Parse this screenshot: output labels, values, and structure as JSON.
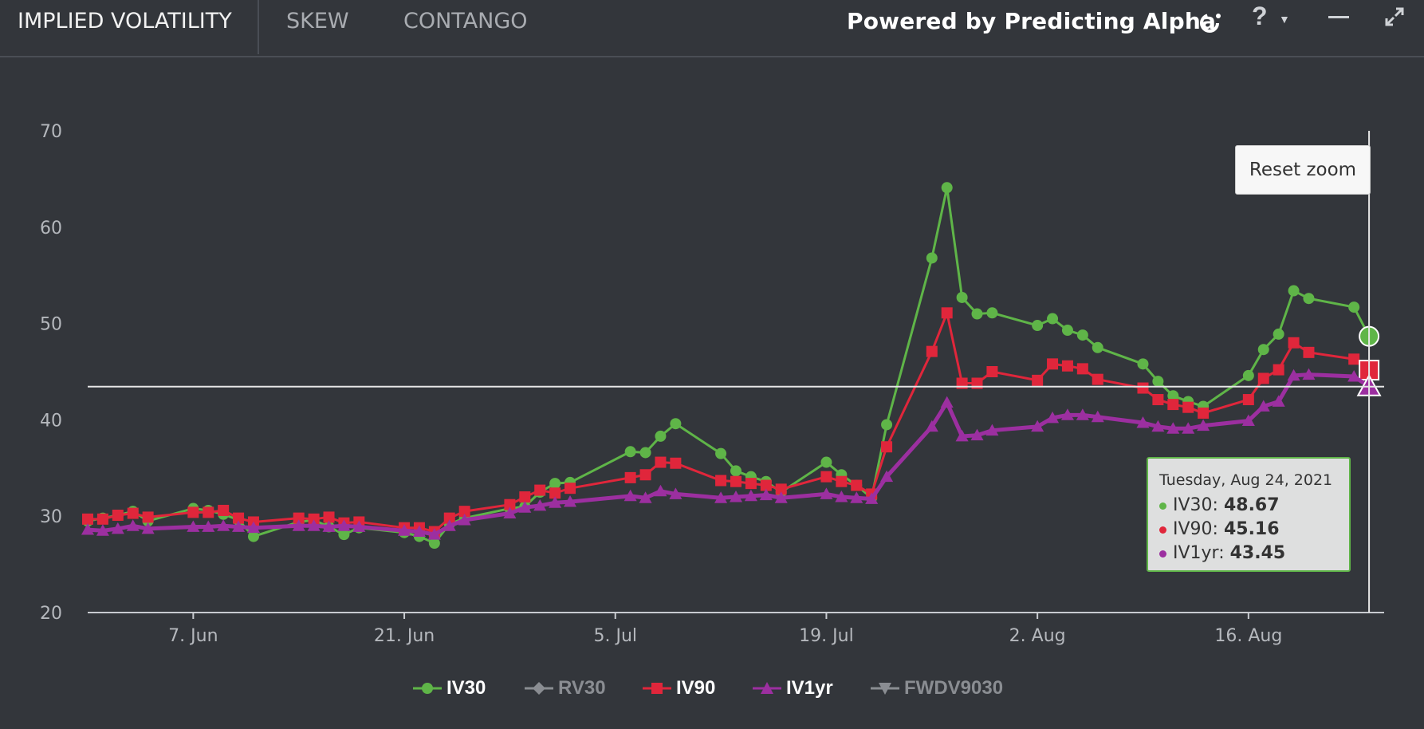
{
  "tabs": [
    {
      "label": "IMPLIED VOLATILITY",
      "active": true
    },
    {
      "label": "SKEW",
      "active": false
    },
    {
      "label": "CONTANGO",
      "active": false
    }
  ],
  "header": {
    "powered_by": "Powered by Predicting Alpha",
    "help_label": "?",
    "icons": [
      "predicting-alpha-logo-icon",
      "help-icon",
      "chevron-down-icon",
      "minimize-icon",
      "expand-icon"
    ]
  },
  "reset_zoom_label": "Reset zoom",
  "tooltip": {
    "date": "Tuesday, Aug 24, 2021",
    "rows": [
      {
        "name": "IV30:",
        "value": "48.67",
        "color": "#5fb548"
      },
      {
        "name": "IV90:",
        "value": "45.16",
        "color": "#e0263b"
      },
      {
        "name": "IV1yr:",
        "value": "43.45",
        "color": "#9c2fa0"
      }
    ]
  },
  "colors": {
    "IV30": "#5fb548",
    "RV30": "#8a8d92",
    "IV90": "#e0263b",
    "IV1yr": "#9c2fa0",
    "FWDV9030": "#8a8d92",
    "background": "#33363b",
    "axis_text": "#b5b8bd"
  },
  "chart_data": {
    "type": "line",
    "title": "",
    "xlabel": "",
    "ylabel": "",
    "ylim": [
      20,
      70
    ],
    "yticks": [
      20,
      30,
      40,
      50,
      60,
      70
    ],
    "xlim": [
      "2021-05-31",
      "2021-08-25"
    ],
    "xticks": [
      {
        "date": "2021-06-07",
        "label": "7. Jun"
      },
      {
        "date": "2021-06-21",
        "label": "21. Jun"
      },
      {
        "date": "2021-07-05",
        "label": "5. Jul"
      },
      {
        "date": "2021-07-19",
        "label": "19. Jul"
      },
      {
        "date": "2021-08-02",
        "label": "2. Aug"
      },
      {
        "date": "2021-08-16",
        "label": "16. Aug"
      }
    ],
    "crosshair": {
      "date": "2021-08-24",
      "y": 43.45
    },
    "legend_position": "bottom-center",
    "legend": [
      {
        "name": "IV30",
        "visible": true,
        "marker": "circle"
      },
      {
        "name": "RV30",
        "visible": false,
        "marker": "diamond"
      },
      {
        "name": "IV90",
        "visible": true,
        "marker": "square"
      },
      {
        "name": "IV1yr",
        "visible": true,
        "marker": "triangle"
      },
      {
        "name": "FWDV9030",
        "visible": false,
        "marker": "triangle-down"
      }
    ],
    "series": [
      {
        "name": "IV30",
        "marker": "circle",
        "x": [
          "2021-05-31",
          "2021-06-01",
          "2021-06-02",
          "2021-06-03",
          "2021-06-04",
          "2021-06-07",
          "2021-06-08",
          "2021-06-09",
          "2021-06-10",
          "2021-06-11",
          "2021-06-14",
          "2021-06-15",
          "2021-06-16",
          "2021-06-17",
          "2021-06-18",
          "2021-06-21",
          "2021-06-22",
          "2021-06-23",
          "2021-06-24",
          "2021-06-25",
          "2021-06-28",
          "2021-06-29",
          "2021-06-30",
          "2021-07-01",
          "2021-07-02",
          "2021-07-06",
          "2021-07-07",
          "2021-07-08",
          "2021-07-09",
          "2021-07-12",
          "2021-07-13",
          "2021-07-14",
          "2021-07-15",
          "2021-07-16",
          "2021-07-19",
          "2021-07-20",
          "2021-07-21",
          "2021-07-22",
          "2021-07-23",
          "2021-07-26",
          "2021-07-27",
          "2021-07-28",
          "2021-07-29",
          "2021-07-30",
          "2021-08-02",
          "2021-08-03",
          "2021-08-04",
          "2021-08-05",
          "2021-08-06",
          "2021-08-09",
          "2021-08-10",
          "2021-08-11",
          "2021-08-12",
          "2021-08-13",
          "2021-08-16",
          "2021-08-17",
          "2021-08-18",
          "2021-08-19",
          "2021-08-20",
          "2021-08-23",
          "2021-08-24"
        ],
        "y": [
          29.5,
          29.8,
          30.1,
          30.5,
          29.5,
          30.8,
          30.6,
          30.2,
          29.6,
          27.9,
          29.4,
          29.6,
          28.9,
          28.1,
          28.8,
          28.3,
          27.9,
          27.2,
          29.2,
          29.8,
          30.8,
          31.0,
          32.5,
          33.4,
          33.5,
          36.7,
          36.6,
          38.3,
          39.6,
          36.5,
          34.7,
          34.1,
          33.6,
          32.5,
          35.6,
          34.3,
          33.2,
          31.9,
          39.5,
          56.8,
          64.1,
          52.7,
          51.0,
          51.1,
          49.8,
          50.5,
          49.3,
          48.8,
          47.5,
          45.8,
          44.0,
          42.5,
          41.9,
          41.4,
          44.6,
          47.3,
          48.9,
          53.4,
          52.6,
          51.7,
          48.67
        ]
      },
      {
        "name": "IV90",
        "marker": "square",
        "x": [
          "2021-05-31",
          "2021-06-01",
          "2021-06-02",
          "2021-06-03",
          "2021-06-04",
          "2021-06-07",
          "2021-06-08",
          "2021-06-09",
          "2021-06-10",
          "2021-06-11",
          "2021-06-14",
          "2021-06-15",
          "2021-06-16",
          "2021-06-17",
          "2021-06-18",
          "2021-06-21",
          "2021-06-22",
          "2021-06-23",
          "2021-06-24",
          "2021-06-25",
          "2021-06-28",
          "2021-06-29",
          "2021-06-30",
          "2021-07-01",
          "2021-07-02",
          "2021-07-06",
          "2021-07-07",
          "2021-07-08",
          "2021-07-09",
          "2021-07-12",
          "2021-07-13",
          "2021-07-14",
          "2021-07-15",
          "2021-07-16",
          "2021-07-19",
          "2021-07-20",
          "2021-07-21",
          "2021-07-22",
          "2021-07-23",
          "2021-07-26",
          "2021-07-27",
          "2021-07-28",
          "2021-07-29",
          "2021-07-30",
          "2021-08-02",
          "2021-08-03",
          "2021-08-04",
          "2021-08-05",
          "2021-08-06",
          "2021-08-09",
          "2021-08-10",
          "2021-08-11",
          "2021-08-12",
          "2021-08-13",
          "2021-08-16",
          "2021-08-17",
          "2021-08-18",
          "2021-08-19",
          "2021-08-20",
          "2021-08-23",
          "2021-08-24"
        ],
        "y": [
          29.7,
          29.7,
          30.1,
          30.3,
          29.9,
          30.4,
          30.4,
          30.6,
          29.8,
          29.4,
          29.8,
          29.7,
          29.9,
          29.3,
          29.4,
          28.8,
          28.8,
          28.4,
          29.8,
          30.5,
          31.2,
          32.0,
          32.7,
          32.4,
          32.9,
          34.0,
          34.3,
          35.6,
          35.5,
          33.7,
          33.6,
          33.4,
          33.2,
          32.8,
          34.1,
          33.6,
          33.2,
          32.3,
          37.2,
          47.1,
          51.1,
          43.8,
          43.8,
          45.0,
          44.1,
          45.8,
          45.6,
          45.3,
          44.2,
          43.3,
          42.1,
          41.6,
          41.3,
          40.7,
          42.1,
          44.3,
          45.2,
          48.0,
          47.0,
          46.3,
          45.16
        ]
      },
      {
        "name": "IV1yr",
        "marker": "triangle",
        "x": [
          "2021-05-31",
          "2021-06-01",
          "2021-06-02",
          "2021-06-03",
          "2021-06-04",
          "2021-06-07",
          "2021-06-08",
          "2021-06-09",
          "2021-06-10",
          "2021-06-11",
          "2021-06-14",
          "2021-06-15",
          "2021-06-16",
          "2021-06-17",
          "2021-06-18",
          "2021-06-21",
          "2021-06-22",
          "2021-06-23",
          "2021-06-24",
          "2021-06-25",
          "2021-06-28",
          "2021-06-29",
          "2021-06-30",
          "2021-07-01",
          "2021-07-02",
          "2021-07-06",
          "2021-07-07",
          "2021-07-08",
          "2021-07-09",
          "2021-07-12",
          "2021-07-13",
          "2021-07-14",
          "2021-07-15",
          "2021-07-16",
          "2021-07-19",
          "2021-07-20",
          "2021-07-21",
          "2021-07-22",
          "2021-07-23",
          "2021-07-26",
          "2021-07-27",
          "2021-07-28",
          "2021-07-29",
          "2021-07-30",
          "2021-08-02",
          "2021-08-03",
          "2021-08-04",
          "2021-08-05",
          "2021-08-06",
          "2021-08-09",
          "2021-08-10",
          "2021-08-11",
          "2021-08-12",
          "2021-08-13",
          "2021-08-16",
          "2021-08-17",
          "2021-08-18",
          "2021-08-19",
          "2021-08-20",
          "2021-08-23",
          "2021-08-24"
        ],
        "y": [
          28.6,
          28.5,
          28.7,
          29.0,
          28.7,
          28.9,
          28.9,
          29.0,
          28.9,
          28.8,
          29.0,
          29.0,
          28.9,
          29.0,
          28.9,
          28.5,
          28.4,
          28.1,
          29.0,
          29.6,
          30.3,
          30.9,
          31.1,
          31.4,
          31.5,
          32.1,
          31.9,
          32.6,
          32.3,
          31.9,
          32.0,
          32.1,
          32.2,
          31.9,
          32.3,
          32.0,
          31.9,
          31.8,
          34.1,
          39.3,
          41.8,
          38.3,
          38.4,
          38.9,
          39.3,
          40.2,
          40.5,
          40.5,
          40.3,
          39.7,
          39.3,
          39.1,
          39.1,
          39.4,
          39.9,
          41.4,
          41.9,
          44.6,
          44.7,
          44.5,
          43.45
        ]
      }
    ]
  }
}
